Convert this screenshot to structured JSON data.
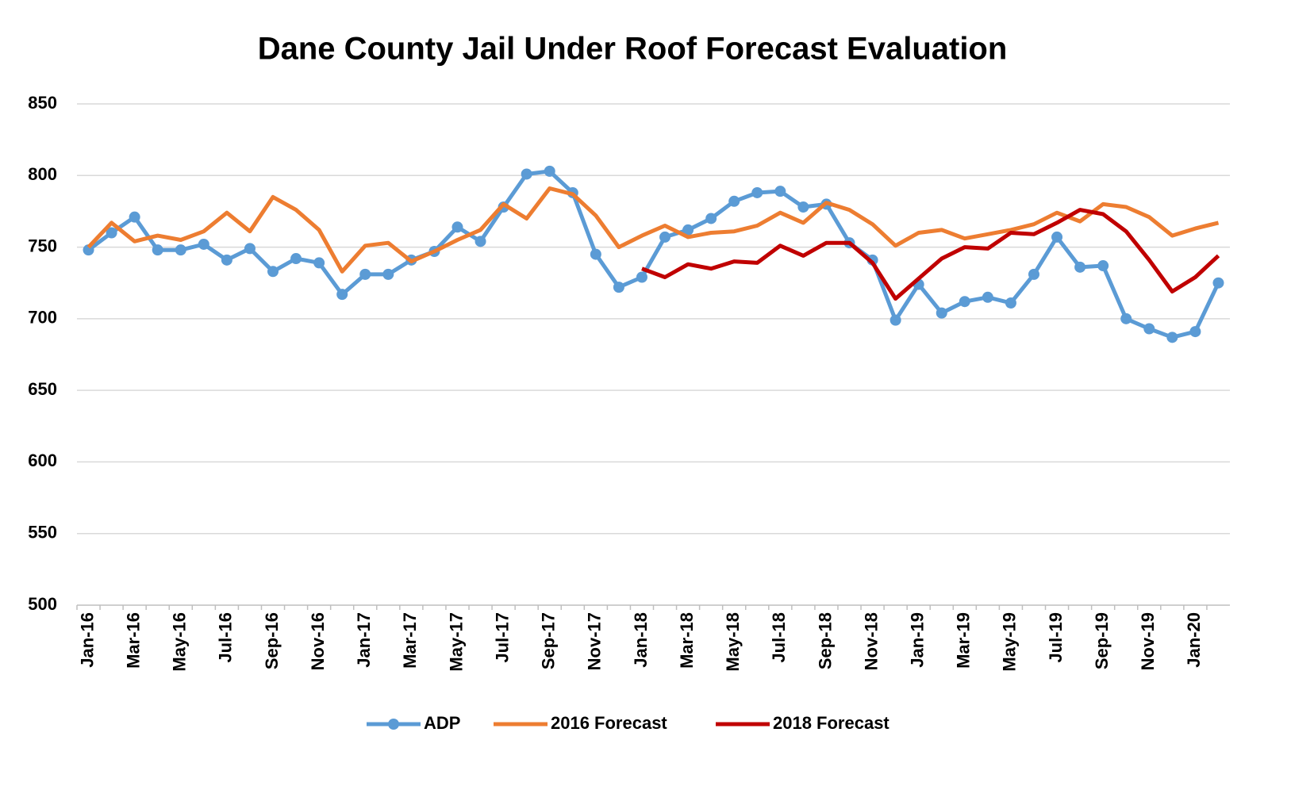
{
  "chart_data": {
    "type": "line",
    "title": "Dane County Jail Under Roof Forecast Evaluation",
    "categories": [
      "Jan-16",
      null,
      "Mar-16",
      null,
      "May-16",
      null,
      "Jul-16",
      null,
      "Sep-16",
      null,
      "Nov-16",
      null,
      "Jan-17",
      null,
      "Mar-17",
      null,
      "May-17",
      null,
      "Jul-17",
      null,
      "Sep-17",
      null,
      "Nov-17",
      null,
      "Jan-18",
      null,
      "Mar-18",
      null,
      "May-18",
      null,
      "Jul-18",
      null,
      "Sep-18",
      null,
      "Nov-18",
      null,
      "Jan-19",
      null,
      "Mar-19",
      null,
      "May-19",
      null,
      "Jul-19",
      null,
      "Sep-19",
      null,
      "Nov-19",
      null,
      "Jan-20",
      null
    ],
    "series": [
      {
        "name": "ADP",
        "color": "#5b9bd5",
        "marker": "circle",
        "values": [
          748,
          760,
          771,
          748,
          748,
          752,
          741,
          749,
          733,
          742,
          739,
          717,
          731,
          731,
          741,
          747,
          764,
          754,
          778,
          801,
          803,
          788,
          745,
          722,
          729,
          757,
          762,
          770,
          782,
          788,
          789,
          778,
          780,
          753,
          741,
          699,
          724,
          704,
          712,
          715,
          711,
          731,
          757,
          736,
          737,
          700,
          693,
          687,
          691,
          725
        ]
      },
      {
        "name": "2016 Forecast",
        "color": "#ed7d31",
        "values": [
          750,
          767,
          754,
          758,
          755,
          761,
          774,
          761,
          785,
          776,
          762,
          733,
          751,
          753,
          740,
          747,
          755,
          762,
          780,
          770,
          791,
          787,
          772,
          750,
          758,
          765,
          757,
          760,
          761,
          765,
          774,
          767,
          781,
          776,
          766,
          751,
          760,
          762,
          756,
          759,
          762,
          766,
          774,
          768,
          780,
          778,
          771,
          758,
          763,
          767
        ]
      },
      {
        "name": "2018 Forecast",
        "color": "#c00000",
        "values": [
          null,
          null,
          null,
          null,
          null,
          null,
          null,
          null,
          null,
          null,
          null,
          null,
          null,
          null,
          null,
          null,
          null,
          null,
          null,
          null,
          null,
          null,
          null,
          null,
          735,
          729,
          738,
          735,
          740,
          739,
          751,
          744,
          753,
          753,
          739,
          714,
          728,
          742,
          750,
          749,
          760,
          759,
          767,
          776,
          773,
          761,
          741,
          719,
          729,
          744
        ]
      }
    ],
    "ylim": [
      500,
      850
    ],
    "yticks": [
      500,
      550,
      600,
      650,
      700,
      750,
      800,
      850
    ],
    "grid": true,
    "legend": "bottom"
  }
}
